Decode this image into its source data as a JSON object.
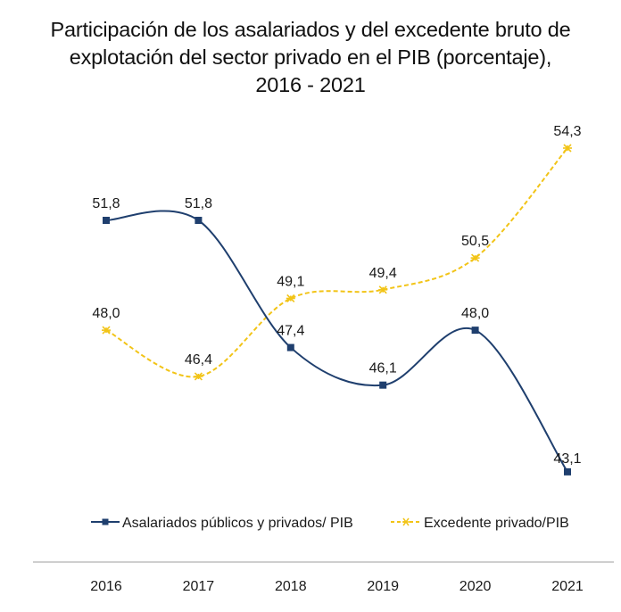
{
  "chart_data": {
    "type": "line",
    "title_lines": [
      "Participación de los asalariados y del excedente bruto de",
      "explotación del sector privado en el PIB (porcentaje),",
      "2016 - 2021"
    ],
    "categories": [
      "2016",
      "2017",
      "2018",
      "2019",
      "2020",
      "2021"
    ],
    "series": [
      {
        "name": "Asalariados públicos y privados/ PIB",
        "values": [
          51.8,
          51.8,
          47.4,
          46.1,
          48.0,
          43.1
        ],
        "labels": [
          "51,8",
          "51,8",
          "47,4",
          "46,1",
          "48,0",
          "43,1"
        ],
        "color": "#1f3f6e",
        "style": "solid",
        "marker": "square"
      },
      {
        "name": "Excedente privado/PIB",
        "values": [
          48.0,
          46.4,
          49.1,
          49.4,
          50.5,
          54.3
        ],
        "labels": [
          "48,0",
          "46,4",
          "49,1",
          "49,4",
          "50,5",
          "54,3"
        ],
        "color": "#f2c417",
        "style": "dashed",
        "marker": "asterisk"
      }
    ],
    "xlabel": "",
    "ylabel": "",
    "grid": false,
    "y_axis_visible": false,
    "legend_position": "bottom",
    "smoothed": true
  }
}
